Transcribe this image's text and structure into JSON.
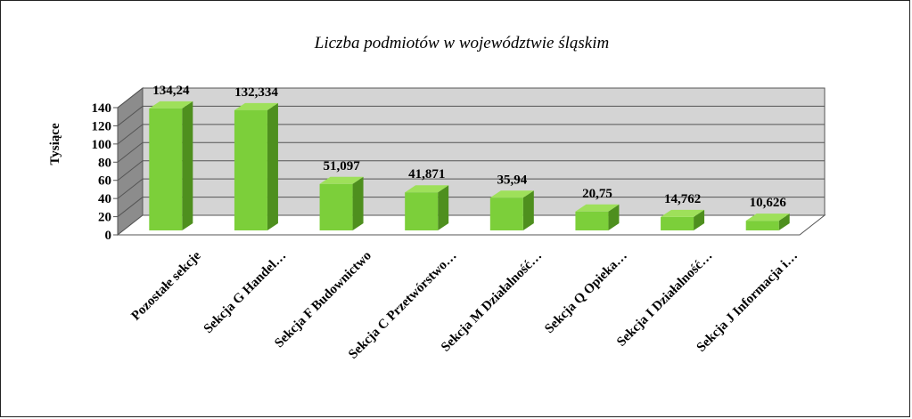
{
  "chart_data": {
    "type": "bar",
    "title": "Liczba podmiotów w województwie śląskim",
    "ylabel": "Tysiące",
    "xlabel": "",
    "ylim": [
      0,
      140
    ],
    "yticks": [
      0,
      20,
      40,
      60,
      80,
      100,
      120,
      140
    ],
    "grid": true,
    "categories": [
      "Pozostałe sekcje",
      "Sekcja G Handel…",
      "Sekcja F Budownictwo",
      "Sekcja C Przetwórstwo…",
      "Sekcja M Działalność…",
      "Sekcja Q Opieka…",
      "Sekcja I Działalność…",
      "Sekcja J Informacja i…"
    ],
    "values": [
      134.24,
      132.334,
      51.097,
      41.871,
      35.94,
      20.75,
      14.762,
      10.626
    ],
    "value_labels": [
      "134,24",
      "132,334",
      "51,097",
      "41,871",
      "35,94",
      "20,75",
      "14,762",
      "10,626"
    ],
    "colors": {
      "bar_front": "#7ccf3a",
      "bar_side": "#4e8f1e",
      "bar_top": "#9ee05a",
      "wall": "#d4d4d4",
      "side_wall": "#8c8c8c",
      "floor": "#ffffff"
    }
  }
}
